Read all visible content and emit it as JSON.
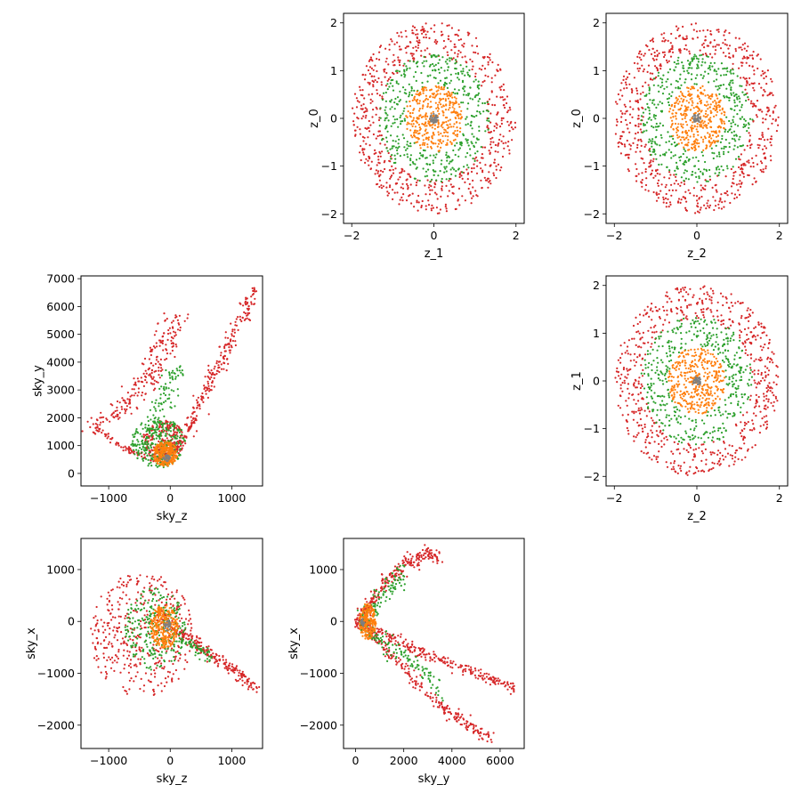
{
  "chart_data": [
    {
      "id": "z1_z0",
      "type": "scatter",
      "xlabel": "z_1",
      "ylabel": "z_0",
      "xlim": [
        -2.2,
        2.2
      ],
      "ylim": [
        -2.2,
        2.2
      ],
      "xticks": [
        "−2",
        "0",
        "2"
      ],
      "yticks": [
        "−2",
        "−1",
        "0",
        "1",
        "2"
      ],
      "xtick_values": [
        -2,
        0,
        2
      ],
      "ytick_values": [
        -2,
        -1,
        0,
        1,
        2
      ],
      "grid": false,
      "series": [
        {
          "color": "#d62728",
          "shape": "ring",
          "r_min": 1.3,
          "r_max": 2.0,
          "count": 650
        },
        {
          "color": "#2ca02c",
          "shape": "ring",
          "r_min": 0.7,
          "r_max": 1.35,
          "count": 420
        },
        {
          "color": "#ff7f0e",
          "shape": "disk",
          "r_min": 0.0,
          "r_max": 0.7,
          "count": 360
        },
        {
          "color": "#7f7f7f",
          "shape": "disk",
          "r_min": 0.0,
          "r_max": 0.1,
          "count": 40
        }
      ]
    },
    {
      "id": "z2_z0",
      "type": "scatter",
      "xlabel": "z_2",
      "ylabel": "z_0",
      "xlim": [
        -2.2,
        2.2
      ],
      "ylim": [
        -2.2,
        2.2
      ],
      "xticks": [
        "−2",
        "0",
        "2"
      ],
      "yticks": [
        "−2",
        "−1",
        "0",
        "1",
        "2"
      ],
      "xtick_values": [
        -2,
        0,
        2
      ],
      "ytick_values": [
        -2,
        -1,
        0,
        1,
        2
      ],
      "grid": false,
      "series": [
        {
          "color": "#d62728",
          "shape": "ring",
          "r_min": 1.3,
          "r_max": 2.0,
          "count": 650
        },
        {
          "color": "#2ca02c",
          "shape": "ring",
          "r_min": 0.7,
          "r_max": 1.35,
          "count": 420
        },
        {
          "color": "#ff7f0e",
          "shape": "disk",
          "r_min": 0.0,
          "r_max": 0.7,
          "count": 360
        },
        {
          "color": "#7f7f7f",
          "shape": "disk",
          "r_min": 0.0,
          "r_max": 0.1,
          "count": 40
        }
      ]
    },
    {
      "id": "skyz_skyy",
      "type": "scatter",
      "xlabel": "sky_z",
      "ylabel": "sky_y",
      "xlim": [
        -1450,
        1500
      ],
      "ylim": [
        -450,
        7100
      ],
      "xticks": [
        "−1000",
        "0",
        "1000"
      ],
      "yticks": [
        "0",
        "1000",
        "2000",
        "3000",
        "4000",
        "5000",
        "6000",
        "7000"
      ],
      "xtick_values": [
        -1000,
        0,
        1000
      ],
      "ytick_values": [
        0,
        1000,
        2000,
        3000,
        4000,
        5000,
        6000,
        7000
      ],
      "grid": false,
      "series": [
        {
          "color": "#d62728",
          "shape": "arm",
          "points": [
            [
              -1300,
              1700
            ],
            [
              -800,
              1000
            ],
            [
              -200,
              400
            ],
            [
              200,
              1200
            ],
            [
              600,
              3000
            ],
            [
              1400,
              6700
            ]
          ],
          "spread": 60,
          "count": 350
        },
        {
          "color": "#d62728",
          "shape": "arm",
          "points": [
            [
              -1300,
              1700
            ],
            [
              -900,
              2200
            ],
            [
              -500,
              3000
            ],
            [
              -200,
              4200
            ],
            [
              0,
              5200
            ],
            [
              100,
              5600
            ]
          ],
          "spread": 110,
          "count": 220
        },
        {
          "color": "#d62728",
          "shape": "cloud",
          "center": [
            -100,
            1200
          ],
          "radius": [
            350,
            700
          ],
          "count": 220
        },
        {
          "color": "#2ca02c",
          "shape": "cloud",
          "center": [
            -200,
            1100
          ],
          "radius": [
            450,
            900
          ],
          "count": 280
        },
        {
          "color": "#2ca02c",
          "shape": "arm",
          "points": [
            [
              -400,
              1200
            ],
            [
              -200,
              2200
            ],
            [
              0,
              3300
            ],
            [
              150,
              3800
            ]
          ],
          "spread": 80,
          "count": 90
        },
        {
          "color": "#ff7f0e",
          "shape": "cloud",
          "center": [
            -80,
            700
          ],
          "radius": [
            200,
            450
          ],
          "count": 300
        },
        {
          "color": "#7f7f7f",
          "shape": "cloud",
          "center": [
            -60,
            550
          ],
          "radius": [
            60,
            120
          ],
          "count": 30
        }
      ]
    },
    {
      "id": "z2_z1",
      "type": "scatter",
      "xlabel": "z_2",
      "ylabel": "z_1",
      "xlim": [
        -2.2,
        2.2
      ],
      "ylim": [
        -2.2,
        2.2
      ],
      "xticks": [
        "−2",
        "0",
        "2"
      ],
      "yticks": [
        "−2",
        "−1",
        "0",
        "1",
        "2"
      ],
      "xtick_values": [
        -2,
        0,
        2
      ],
      "ytick_values": [
        -2,
        -1,
        0,
        1,
        2
      ],
      "grid": false,
      "series": [
        {
          "color": "#d62728",
          "shape": "ring",
          "r_min": 1.3,
          "r_max": 2.0,
          "count": 650
        },
        {
          "color": "#2ca02c",
          "shape": "ring",
          "r_min": 0.7,
          "r_max": 1.35,
          "count": 420
        },
        {
          "color": "#ff7f0e",
          "shape": "disk",
          "r_min": 0.0,
          "r_max": 0.7,
          "count": 360
        },
        {
          "color": "#7f7f7f",
          "shape": "disk",
          "r_min": 0.0,
          "r_max": 0.1,
          "count": 40
        }
      ]
    },
    {
      "id": "skyz_skyx",
      "type": "scatter",
      "xlabel": "sky_z",
      "ylabel": "sky_x",
      "xlim": [
        -1450,
        1500
      ],
      "ylim": [
        -2450,
        1600
      ],
      "xticks": [
        "−1000",
        "0",
        "1000"
      ],
      "yticks": [
        "−2000",
        "−1000",
        "0",
        "1000"
      ],
      "xtick_values": [
        -1000,
        0,
        1000
      ],
      "ytick_values": [
        -2000,
        -1000,
        0,
        1000
      ],
      "grid": false,
      "series": [
        {
          "color": "#d62728",
          "shape": "arm",
          "points": [
            [
              0,
              -100
            ],
            [
              500,
              -500
            ],
            [
              1000,
              -900
            ],
            [
              1400,
              -1300
            ]
          ],
          "spread": 50,
          "count": 200
        },
        {
          "color": "#d62728",
          "shape": "cloud",
          "center": [
            -450,
            -250
          ],
          "radius": [
            850,
            1200
          ],
          "count": 420
        },
        {
          "color": "#2ca02c",
          "shape": "cloud",
          "center": [
            -250,
            -150
          ],
          "radius": [
            500,
            800
          ],
          "count": 260
        },
        {
          "color": "#2ca02c",
          "shape": "arm",
          "points": [
            [
              100,
              -300
            ],
            [
              400,
              -500
            ],
            [
              700,
              -700
            ]
          ],
          "spread": 60,
          "count": 60
        },
        {
          "color": "#ff7f0e",
          "shape": "cloud",
          "center": [
            -100,
            -100
          ],
          "radius": [
            230,
            420
          ],
          "count": 300
        },
        {
          "color": "#7f7f7f",
          "shape": "cloud",
          "center": [
            -50,
            -80
          ],
          "radius": [
            60,
            100
          ],
          "count": 30
        }
      ]
    },
    {
      "id": "skyy_skyx",
      "type": "scatter",
      "xlabel": "sky_y",
      "ylabel": "sky_x",
      "xlim": [
        -500,
        7000
      ],
      "ylim": [
        -2450,
        1600
      ],
      "xticks": [
        "0",
        "2000",
        "4000",
        "6000"
      ],
      "yticks": [
        "−2000",
        "−1000",
        "0",
        "1000"
      ],
      "xtick_values": [
        0,
        2000,
        4000,
        6000
      ],
      "ytick_values": [
        -2000,
        -1000,
        0,
        1000
      ],
      "grid": false,
      "series": [
        {
          "color": "#d62728",
          "shape": "arm",
          "points": [
            [
              0,
              0
            ],
            [
              1000,
              -200
            ],
            [
              2000,
              -450
            ],
            [
              3500,
              -750
            ],
            [
              5000,
              -1000
            ],
            [
              6700,
              -1300
            ]
          ],
          "spread": 50,
          "count": 260
        },
        {
          "color": "#d62728",
          "shape": "arm",
          "points": [
            [
              0,
              0
            ],
            [
              800,
              -300
            ],
            [
              1800,
              -800
            ],
            [
              3000,
              -1400
            ],
            [
              4300,
              -1900
            ],
            [
              5600,
              -2250
            ]
          ],
          "spread": 70,
          "count": 220
        },
        {
          "color": "#d62728",
          "shape": "arm",
          "points": [
            [
              0,
              0
            ],
            [
              600,
              300
            ],
            [
              1300,
              800
            ],
            [
              2200,
              1150
            ],
            [
              2900,
              1300
            ],
            [
              3500,
              1250
            ]
          ],
          "spread": 80,
          "count": 240
        },
        {
          "color": "#2ca02c",
          "shape": "arm",
          "points": [
            [
              200,
              0
            ],
            [
              800,
              300
            ],
            [
              1500,
              700
            ],
            [
              2000,
              900
            ]
          ],
          "spread": 100,
          "count": 110
        },
        {
          "color": "#2ca02c",
          "shape": "arm",
          "points": [
            [
              300,
              -100
            ],
            [
              1200,
              -400
            ],
            [
              2500,
              -800
            ],
            [
              3600,
              -1400
            ]
          ],
          "spread": 90,
          "count": 120
        },
        {
          "color": "#ff7f0e",
          "shape": "cloud",
          "center": [
            500,
            0
          ],
          "radius": [
            350,
            350
          ],
          "count": 200
        },
        {
          "color": "#7f7f7f",
          "shape": "cloud",
          "center": [
            300,
            -30
          ],
          "radius": [
            80,
            80
          ],
          "count": 25
        }
      ]
    }
  ]
}
